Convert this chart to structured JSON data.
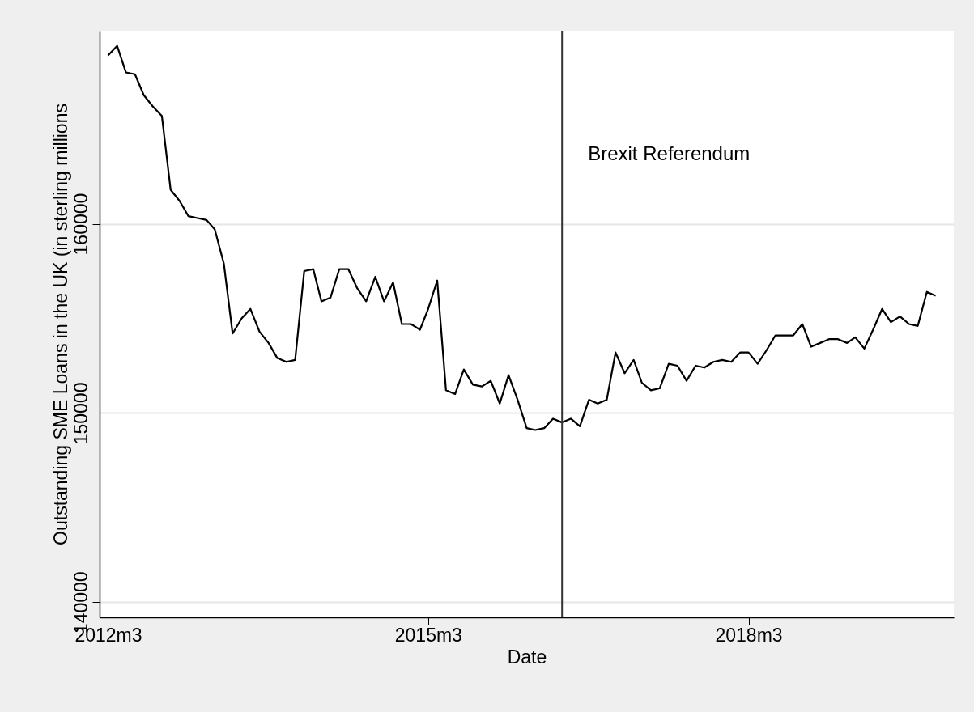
{
  "chart_data": {
    "type": "line",
    "xlabel": "Date",
    "ylabel": "Outstanding SME Loans in the UK (in sterling millions",
    "x": [
      "2012-03",
      "2012-04",
      "2012-05",
      "2012-06",
      "2012-07",
      "2012-08",
      "2012-09",
      "2012-10",
      "2012-11",
      "2012-12",
      "2013-01",
      "2013-02",
      "2013-03",
      "2013-04",
      "2013-05",
      "2013-06",
      "2013-07",
      "2013-08",
      "2013-09",
      "2013-10",
      "2013-11",
      "2013-12",
      "2014-01",
      "2014-02",
      "2014-03",
      "2014-04",
      "2014-05",
      "2014-06",
      "2014-07",
      "2014-08",
      "2014-09",
      "2014-10",
      "2014-11",
      "2014-12",
      "2015-01",
      "2015-02",
      "2015-03",
      "2015-04",
      "2015-05",
      "2015-06",
      "2015-07",
      "2015-08",
      "2015-09",
      "2015-10",
      "2015-11",
      "2015-12",
      "2016-01",
      "2016-02",
      "2016-03",
      "2016-04",
      "2016-05",
      "2016-06",
      "2016-07",
      "2016-08",
      "2016-09",
      "2016-10",
      "2016-11",
      "2016-12",
      "2017-01",
      "2017-02",
      "2017-03",
      "2017-04",
      "2017-05",
      "2017-06",
      "2017-07",
      "2017-08",
      "2017-09",
      "2017-10",
      "2017-11",
      "2017-12",
      "2018-01",
      "2018-02",
      "2018-03",
      "2018-04",
      "2018-05",
      "2018-06",
      "2018-07",
      "2018-08",
      "2018-09",
      "2018-10",
      "2018-11",
      "2018-12",
      "2019-01",
      "2019-02",
      "2019-03",
      "2019-04",
      "2019-05",
      "2019-06",
      "2019-07",
      "2019-08",
      "2019-09",
      "2019-10",
      "2019-11",
      "2019-12"
    ],
    "series": [
      {
        "color": "#000000",
        "values": [
          168900,
          169400,
          168000,
          167900,
          166800,
          166200,
          165700,
          161800,
          161200,
          160400,
          160300,
          160200,
          159700,
          157900,
          154200,
          155000,
          155500,
          154300,
          153700,
          152900,
          152700,
          152800,
          157500,
          157600,
          155900,
          156100,
          157600,
          157600,
          156600,
          155900,
          157200,
          155900,
          156900,
          154700,
          154700,
          154400,
          155500,
          157000,
          151200,
          151000,
          152300,
          151500,
          151400,
          151700,
          150500,
          152000,
          150700,
          149200,
          149100,
          149200,
          149700,
          149500,
          149700,
          149300,
          150700,
          150500,
          150700,
          153200,
          152100,
          152800,
          151600,
          151200,
          151300,
          152600,
          152500,
          151700,
          152500,
          152400,
          152700,
          152800,
          152700,
          153200,
          153200,
          152600,
          153300,
          154100,
          154100,
          154100,
          154700,
          153500,
          153700,
          153900,
          153900,
          153700,
          154000,
          153400,
          154400,
          155500,
          154800,
          155100,
          154700,
          154600,
          156400,
          156200
        ]
      }
    ],
    "xlim": [
      "2012-02",
      "2020-02"
    ],
    "xticks": [
      {
        "value": "2012-03",
        "label": "2012m3"
      },
      {
        "value": "2015-03",
        "label": "2015m3"
      },
      {
        "value": "2018-03",
        "label": "2018m3"
      }
    ],
    "ylim": [
      139200,
      170200
    ],
    "yticks": [
      140000,
      150000,
      160000
    ],
    "grid": "y",
    "legend": false,
    "ref_lines": [
      {
        "axis": "x",
        "value": "2016-06",
        "label": "Brexit Referendum",
        "color": "#333333"
      }
    ]
  }
}
